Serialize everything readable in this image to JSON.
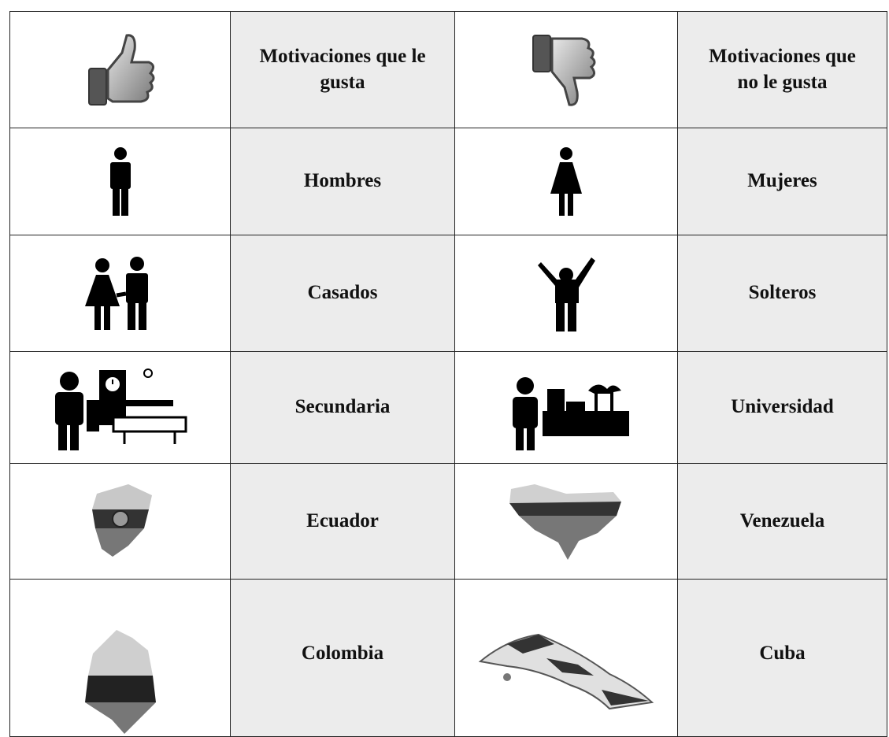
{
  "table": {
    "rows": [
      [
        "Motivaciones que le gusta",
        "Motivaciones que no le gusta"
      ],
      [
        "Hombres",
        "Mujeres"
      ],
      [
        "Casados",
        "Solteros"
      ],
      [
        "Secundaria",
        "Universidad"
      ],
      [
        "Ecuador",
        "Venezuela"
      ],
      [
        "Colombia",
        "Cuba"
      ]
    ]
  }
}
